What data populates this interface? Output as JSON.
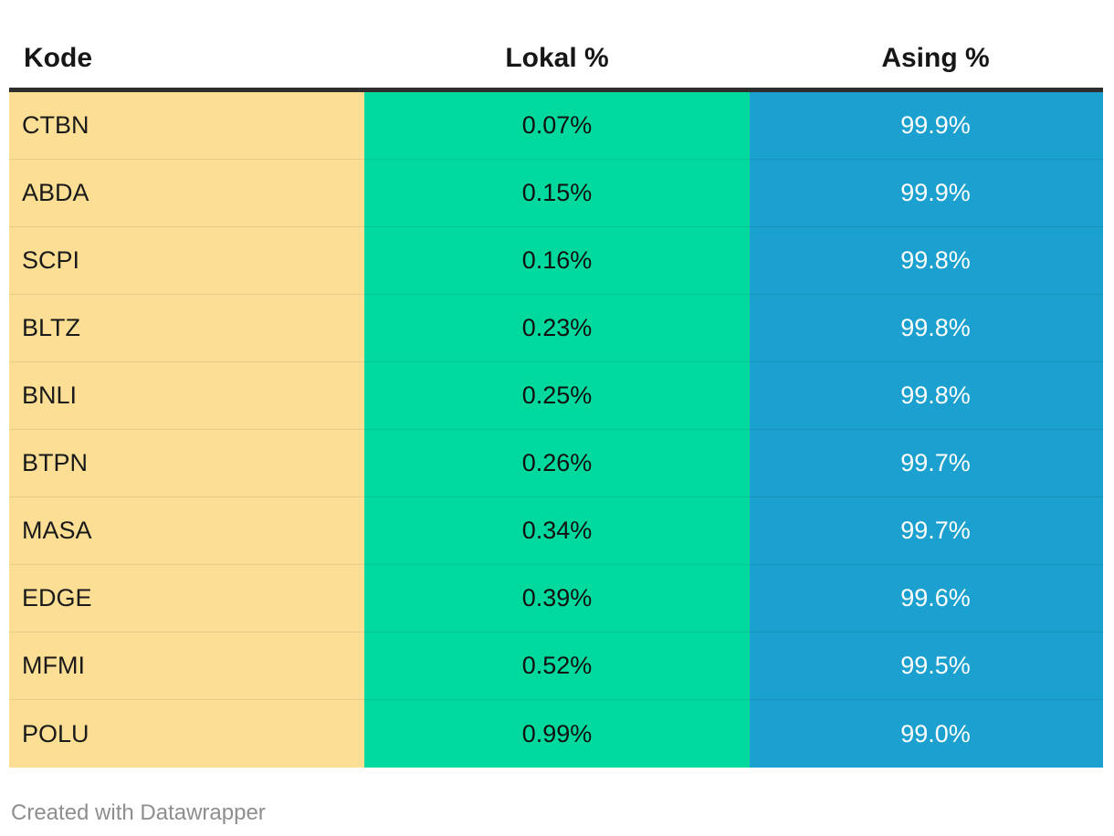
{
  "chart_data": {
    "type": "table",
    "columns": [
      "Kode",
      "Lokal %",
      "Asing %"
    ],
    "categories": [
      "CTBN",
      "ABDA",
      "SCPI",
      "BLTZ",
      "BNLI",
      "BTPN",
      "MASA",
      "EDGE",
      "MFMI",
      "POLU"
    ],
    "series": [
      {
        "name": "Lokal %",
        "values": [
          0.07,
          0.15,
          0.16,
          0.23,
          0.25,
          0.26,
          0.34,
          0.39,
          0.52,
          0.99
        ]
      },
      {
        "name": "Asing %",
        "values": [
          99.9,
          99.9,
          99.8,
          99.8,
          99.8,
          99.7,
          99.7,
          99.6,
          99.5,
          99.0
        ]
      }
    ],
    "rows": [
      [
        "CTBN",
        "0.07%",
        "99.9%"
      ],
      [
        "ABDA",
        "0.15%",
        "99.9%"
      ],
      [
        "SCPI",
        "0.16%",
        "99.8%"
      ],
      [
        "BLTZ",
        "0.23%",
        "99.8%"
      ],
      [
        "BNLI",
        "0.25%",
        "99.8%"
      ],
      [
        "BTPN",
        "0.26%",
        "99.7%"
      ],
      [
        "MASA",
        "0.34%",
        "99.7%"
      ],
      [
        "EDGE",
        "0.39%",
        "99.6%"
      ],
      [
        "MFMI",
        "0.52%",
        "99.5%"
      ],
      [
        "POLU",
        "0.99%",
        "99.0%"
      ]
    ],
    "legend_position": "none",
    "grid": false
  },
  "table": {
    "columns": [
      {
        "label": "Kode",
        "align": "left"
      },
      {
        "label": "Lokal %",
        "align": "center"
      },
      {
        "label": "Asing %",
        "align": "center"
      }
    ],
    "rows": [
      {
        "kode": "CTBN",
        "lokal": "0.07%",
        "asing": "99.9%"
      },
      {
        "kode": "ABDA",
        "lokal": "0.15%",
        "asing": "99.9%"
      },
      {
        "kode": "SCPI",
        "lokal": "0.16%",
        "asing": "99.8%"
      },
      {
        "kode": "BLTZ",
        "lokal": "0.23%",
        "asing": "99.8%"
      },
      {
        "kode": "BNLI",
        "lokal": "0.25%",
        "asing": "99.8%"
      },
      {
        "kode": "BTPN",
        "lokal": "0.26%",
        "asing": "99.7%"
      },
      {
        "kode": "MASA",
        "lokal": "0.34%",
        "asing": "99.7%"
      },
      {
        "kode": "EDGE",
        "lokal": "0.39%",
        "asing": "99.6%"
      },
      {
        "kode": "MFMI",
        "lokal": "0.52%",
        "asing": "99.5%"
      },
      {
        "kode": "POLU",
        "lokal": "0.99%",
        "asing": "99.0%"
      }
    ]
  },
  "colors": {
    "kode_column_bg": "#FCDF94",
    "lokal_column_bg": "#00D99E",
    "asing_column_bg": "#1BA0CF",
    "header_rule": "#2E2E2E",
    "asing_text": "#FFFFFF",
    "body_text": "#1A1A1A",
    "credit_text": "#8E8E8E"
  },
  "footer": {
    "credit": "Created with Datawrapper"
  }
}
